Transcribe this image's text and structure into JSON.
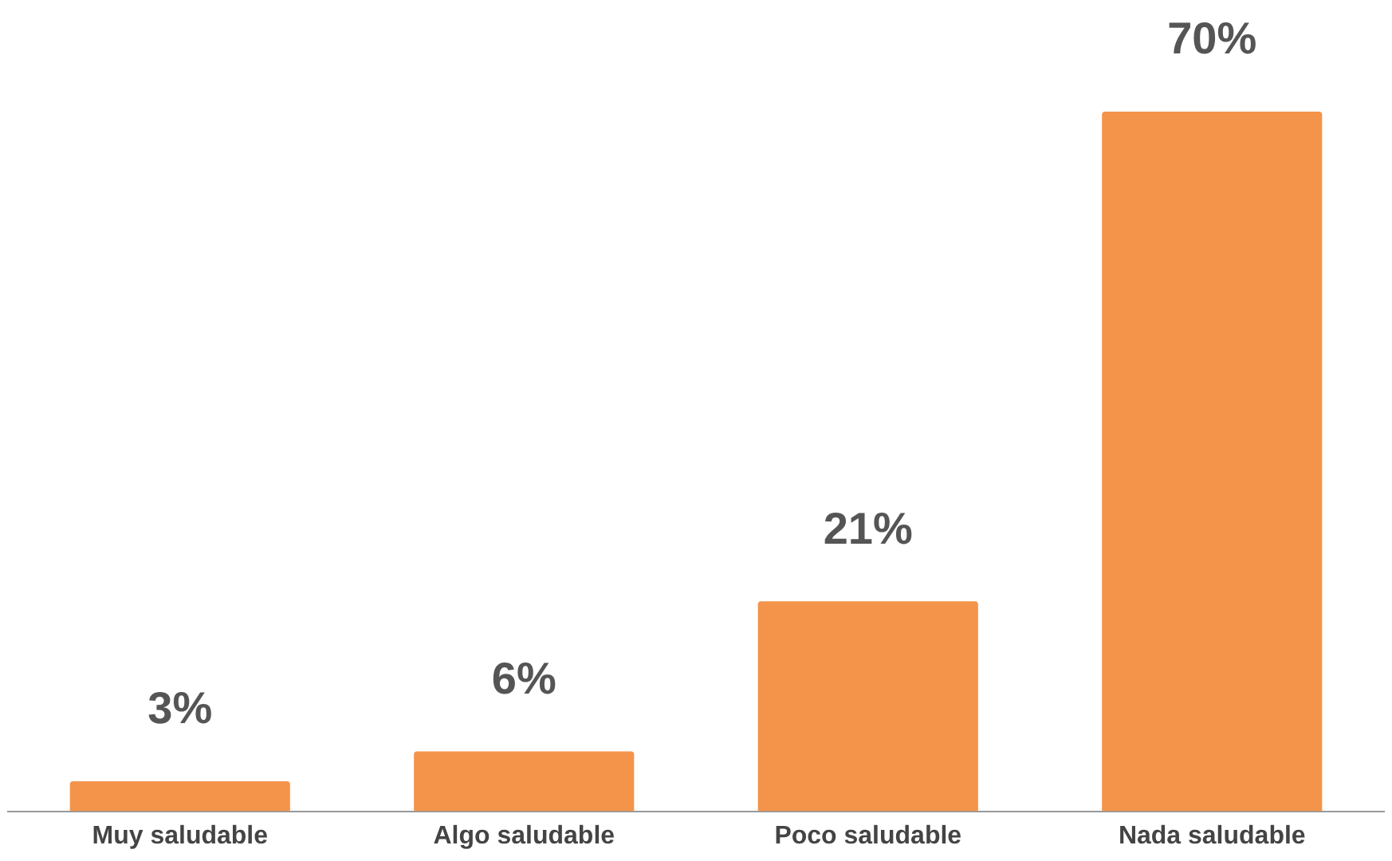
{
  "chart_data": {
    "type": "bar",
    "categories": [
      "Muy saludable",
      "Algo saludable",
      "Poco saludable",
      "Nada saludable"
    ],
    "values": [
      3,
      6,
      21,
      70
    ],
    "value_labels": [
      "3%",
      "6%",
      "21%",
      "70%"
    ],
    "color": "#f4944a",
    "grid": false,
    "legend": false
  }
}
